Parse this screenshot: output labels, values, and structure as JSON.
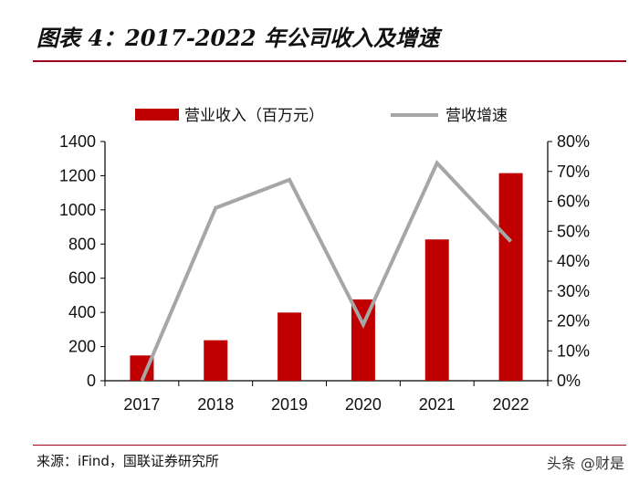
{
  "header": {
    "title": "图表 4：2017-2022 年公司收入及增速"
  },
  "footer": {
    "source": "来源：iFind，国联证券研究所",
    "watermark": "头条 @财是"
  },
  "chart_data": {
    "type": "bar+line",
    "categories": [
      "2017",
      "2018",
      "2019",
      "2020",
      "2021",
      "2022"
    ],
    "series": [
      {
        "name": "营业收入（百万元）",
        "type": "bar",
        "axis": "left",
        "color": "#c00000",
        "values": [
          148,
          237,
          399,
          476,
          827,
          1215
        ]
      },
      {
        "name": "营收增速",
        "type": "line",
        "axis": "right",
        "color": "#a6a6a6",
        "values": [
          0,
          57.8,
          67.2,
          18.8,
          72.8,
          46.6
        ]
      }
    ],
    "y_left": {
      "range": [
        0,
        1400
      ],
      "ticks": [
        "0",
        "200",
        "400",
        "600",
        "800",
        "1000",
        "1200",
        "1400"
      ]
    },
    "y_right": {
      "range": [
        0,
        80
      ],
      "unit": "%",
      "ticks": [
        "0%",
        "10%",
        "20%",
        "30%",
        "40%",
        "50%",
        "60%",
        "70%",
        "80%"
      ]
    },
    "legend": "top",
    "grid": false
  }
}
